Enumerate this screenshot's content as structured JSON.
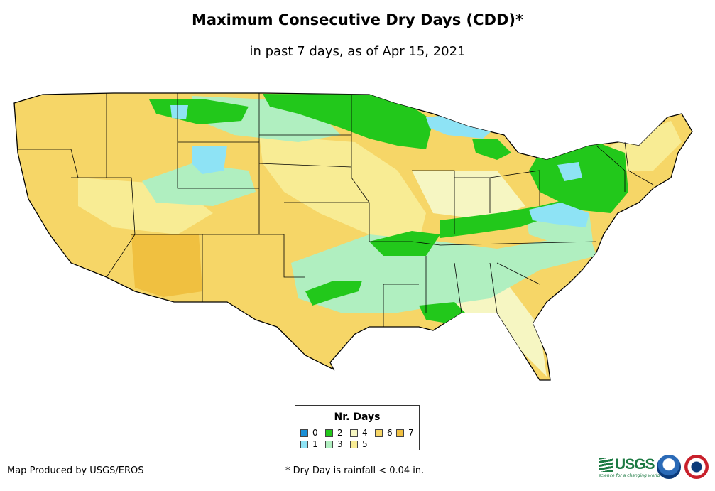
{
  "header": {
    "title": "Maximum Consecutive Dry Days (CDD)*",
    "subtitle": "in past 7 days, as of Apr 15, 2021"
  },
  "legend": {
    "title": "Nr. Days",
    "items": [
      {
        "label": "0",
        "color": "#1a8fd6"
      },
      {
        "label": "1",
        "color": "#8ee3f5"
      },
      {
        "label": "2",
        "color": "#22c81b"
      },
      {
        "label": "3",
        "color": "#b0efc0"
      },
      {
        "label": "4",
        "color": "#f6f6c2"
      },
      {
        "label": "5",
        "color": "#f8ec94"
      },
      {
        "label": "6",
        "color": "#f6d667"
      },
      {
        "label": "7",
        "color": "#f0c040"
      }
    ]
  },
  "footer": {
    "credit": "Map Produced by USGS/EROS",
    "footnote": "* Dry Day is rainfall < 0.04 in.",
    "usgs_logo_text": "USGS",
    "usgs_tagline": "science for a changing world"
  }
}
